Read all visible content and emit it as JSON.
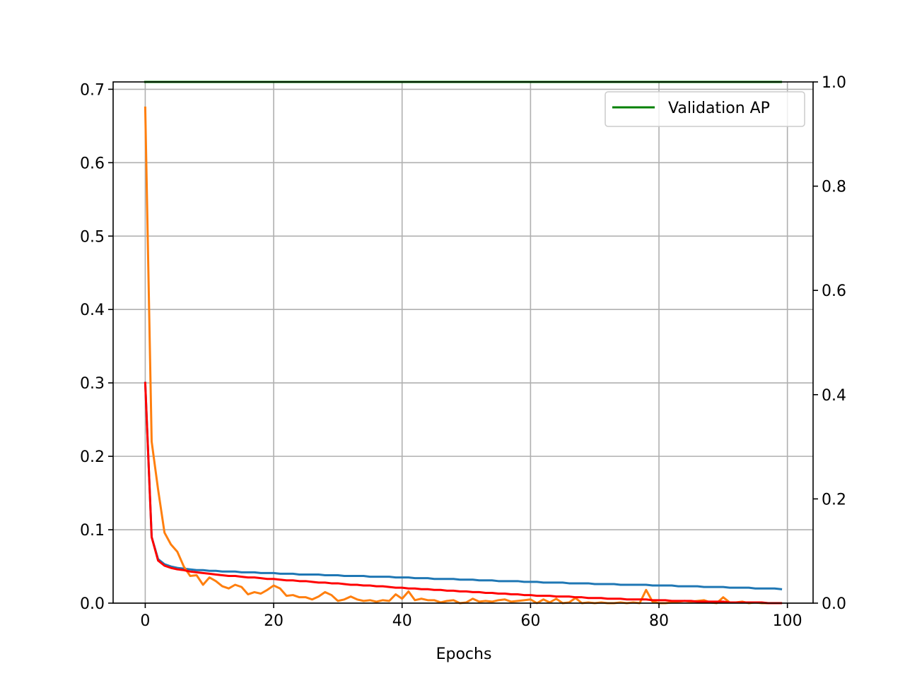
{
  "chart_data": {
    "type": "line",
    "xlabel": "Epochs",
    "ylabel": "",
    "y2label": "",
    "xlim": [
      -5,
      104
    ],
    "ylim": [
      0,
      0.71
    ],
    "y2lim": [
      0,
      1.0
    ],
    "x_ticks": [
      0,
      20,
      40,
      60,
      80,
      100
    ],
    "x_tick_labels": [
      "0",
      "20",
      "40",
      "60",
      "80",
      "100"
    ],
    "y_ticks": [
      0.0,
      0.1,
      0.2,
      0.3,
      0.4,
      0.5,
      0.6,
      0.7
    ],
    "y_tick_labels": [
      "0.0",
      "0.1",
      "0.2",
      "0.3",
      "0.4",
      "0.5",
      "0.6",
      "0.7"
    ],
    "y2_ticks": [
      0.0,
      0.2,
      0.4,
      0.6,
      0.8,
      1.0
    ],
    "y2_tick_labels": [
      "0.0",
      "0.2",
      "0.4",
      "0.6",
      "0.8",
      "1.0"
    ],
    "grid": true,
    "legend_position": "top-right",
    "series": [
      {
        "key": "blue",
        "axis": "left",
        "color": "#1f77b4",
        "x": [
          0,
          1,
          2,
          3,
          4,
          5,
          6,
          7,
          8,
          9,
          10,
          11,
          12,
          13,
          14,
          15,
          16,
          17,
          18,
          19,
          20,
          21,
          22,
          23,
          24,
          25,
          26,
          27,
          28,
          29,
          30,
          31,
          32,
          33,
          34,
          35,
          36,
          37,
          38,
          39,
          40,
          41,
          42,
          43,
          44,
          45,
          46,
          47,
          48,
          49,
          50,
          51,
          52,
          53,
          54,
          55,
          56,
          57,
          58,
          59,
          60,
          61,
          62,
          63,
          64,
          65,
          66,
          67,
          68,
          69,
          70,
          71,
          72,
          73,
          74,
          75,
          76,
          77,
          78,
          79,
          80,
          81,
          82,
          83,
          84,
          85,
          86,
          87,
          88,
          89,
          90,
          91,
          92,
          93,
          94,
          95,
          96,
          97,
          98,
          99
        ],
        "y": [
          0.3,
          0.09,
          0.06,
          0.053,
          0.05,
          0.048,
          0.047,
          0.046,
          0.045,
          0.045,
          0.044,
          0.044,
          0.043,
          0.043,
          0.043,
          0.042,
          0.042,
          0.042,
          0.041,
          0.041,
          0.041,
          0.04,
          0.04,
          0.04,
          0.039,
          0.039,
          0.039,
          0.039,
          0.038,
          0.038,
          0.038,
          0.037,
          0.037,
          0.037,
          0.037,
          0.036,
          0.036,
          0.036,
          0.036,
          0.035,
          0.035,
          0.035,
          0.034,
          0.034,
          0.034,
          0.033,
          0.033,
          0.033,
          0.033,
          0.032,
          0.032,
          0.032,
          0.031,
          0.031,
          0.031,
          0.03,
          0.03,
          0.03,
          0.03,
          0.029,
          0.029,
          0.029,
          0.028,
          0.028,
          0.028,
          0.028,
          0.027,
          0.027,
          0.027,
          0.027,
          0.026,
          0.026,
          0.026,
          0.026,
          0.025,
          0.025,
          0.025,
          0.025,
          0.025,
          0.024,
          0.024,
          0.024,
          0.024,
          0.023,
          0.023,
          0.023,
          0.023,
          0.022,
          0.022,
          0.022,
          0.022,
          0.021,
          0.021,
          0.021,
          0.021,
          0.02,
          0.02,
          0.02,
          0.02,
          0.019
        ]
      },
      {
        "key": "orange",
        "axis": "left",
        "color": "#ff7f0e",
        "x": [
          0,
          1,
          2,
          3,
          4,
          5,
          6,
          7,
          8,
          9,
          10,
          11,
          12,
          13,
          14,
          15,
          16,
          17,
          18,
          19,
          20,
          21,
          22,
          23,
          24,
          25,
          26,
          27,
          28,
          29,
          30,
          31,
          32,
          33,
          34,
          35,
          36,
          37,
          38,
          39,
          40,
          41,
          42,
          43,
          44,
          45,
          46,
          47,
          48,
          49,
          50,
          51,
          52,
          53,
          54,
          55,
          56,
          57,
          58,
          59,
          60,
          61,
          62,
          63,
          64,
          65,
          66,
          67,
          68,
          69,
          70,
          71,
          72,
          73,
          74,
          75,
          76,
          77,
          78,
          79,
          80,
          81,
          82,
          83,
          84,
          85,
          86,
          87,
          88,
          89,
          90,
          91,
          92,
          93,
          94,
          95,
          96,
          97,
          98,
          99
        ],
        "y": [
          0.675,
          0.22,
          0.155,
          0.096,
          0.08,
          0.07,
          0.05,
          0.037,
          0.038,
          0.025,
          0.035,
          0.03,
          0.023,
          0.02,
          0.025,
          0.022,
          0.012,
          0.015,
          0.013,
          0.018,
          0.024,
          0.02,
          0.01,
          0.011,
          0.008,
          0.008,
          0.005,
          0.009,
          0.015,
          0.011,
          0.003,
          0.005,
          0.009,
          0.005,
          0.003,
          0.004,
          0.002,
          0.004,
          0.003,
          0.012,
          0.006,
          0.016,
          0.004,
          0.006,
          0.004,
          0.004,
          0.001,
          0.003,
          0.004,
          0.0,
          0.001,
          0.006,
          0.002,
          0.003,
          0.002,
          0.004,
          0.005,
          0.002,
          0.003,
          0.004,
          0.005,
          0.0,
          0.005,
          0.001,
          0.006,
          0.0,
          0.001,
          0.007,
          0.0,
          0.001,
          0.0,
          0.001,
          0.0,
          0.0,
          0.001,
          0.0,
          0.001,
          0.0,
          0.018,
          0.002,
          0.0,
          0.0,
          0.001,
          0.002,
          0.003,
          0.002,
          0.003,
          0.004,
          0.001,
          0.0,
          0.008,
          0.001,
          0.001,
          0.002,
          0.0,
          0.001,
          0.0,
          0.0,
          0.0,
          0.0
        ]
      },
      {
        "key": "red",
        "axis": "left",
        "color": "#ff0000",
        "x": [
          0,
          1,
          2,
          3,
          4,
          5,
          6,
          7,
          8,
          9,
          10,
          11,
          12,
          13,
          14,
          15,
          16,
          17,
          18,
          19,
          20,
          21,
          22,
          23,
          24,
          25,
          26,
          27,
          28,
          29,
          30,
          31,
          32,
          33,
          34,
          35,
          36,
          37,
          38,
          39,
          40,
          41,
          42,
          43,
          44,
          45,
          46,
          47,
          48,
          49,
          50,
          51,
          52,
          53,
          54,
          55,
          56,
          57,
          58,
          59,
          60,
          61,
          62,
          63,
          64,
          65,
          66,
          67,
          68,
          69,
          70,
          71,
          72,
          73,
          74,
          75,
          76,
          77,
          78,
          79,
          80,
          81,
          82,
          83,
          84,
          85,
          86,
          87,
          88,
          89,
          90,
          91,
          92,
          93,
          94,
          95,
          96,
          97,
          98,
          99
        ],
        "y": [
          0.3,
          0.09,
          0.058,
          0.051,
          0.048,
          0.046,
          0.045,
          0.043,
          0.042,
          0.041,
          0.04,
          0.039,
          0.038,
          0.037,
          0.037,
          0.036,
          0.035,
          0.035,
          0.034,
          0.033,
          0.033,
          0.032,
          0.031,
          0.031,
          0.03,
          0.03,
          0.029,
          0.028,
          0.028,
          0.027,
          0.027,
          0.026,
          0.025,
          0.025,
          0.024,
          0.024,
          0.023,
          0.023,
          0.022,
          0.021,
          0.021,
          0.02,
          0.02,
          0.019,
          0.019,
          0.018,
          0.018,
          0.017,
          0.017,
          0.016,
          0.016,
          0.015,
          0.015,
          0.014,
          0.014,
          0.013,
          0.013,
          0.012,
          0.012,
          0.011,
          0.011,
          0.01,
          0.01,
          0.01,
          0.009,
          0.009,
          0.009,
          0.008,
          0.008,
          0.007,
          0.007,
          0.007,
          0.006,
          0.006,
          0.006,
          0.005,
          0.005,
          0.005,
          0.005,
          0.004,
          0.004,
          0.004,
          0.003,
          0.003,
          0.003,
          0.003,
          0.002,
          0.002,
          0.002,
          0.002,
          0.002,
          0.001,
          0.001,
          0.001,
          0.001,
          0.001,
          0.001,
          0.0,
          0.0,
          0.0
        ]
      },
      {
        "key": "green",
        "name": "Validation AP",
        "axis": "right",
        "color": "#008000",
        "x": [
          0,
          99
        ],
        "y": [
          1.0,
          1.0
        ]
      }
    ]
  }
}
